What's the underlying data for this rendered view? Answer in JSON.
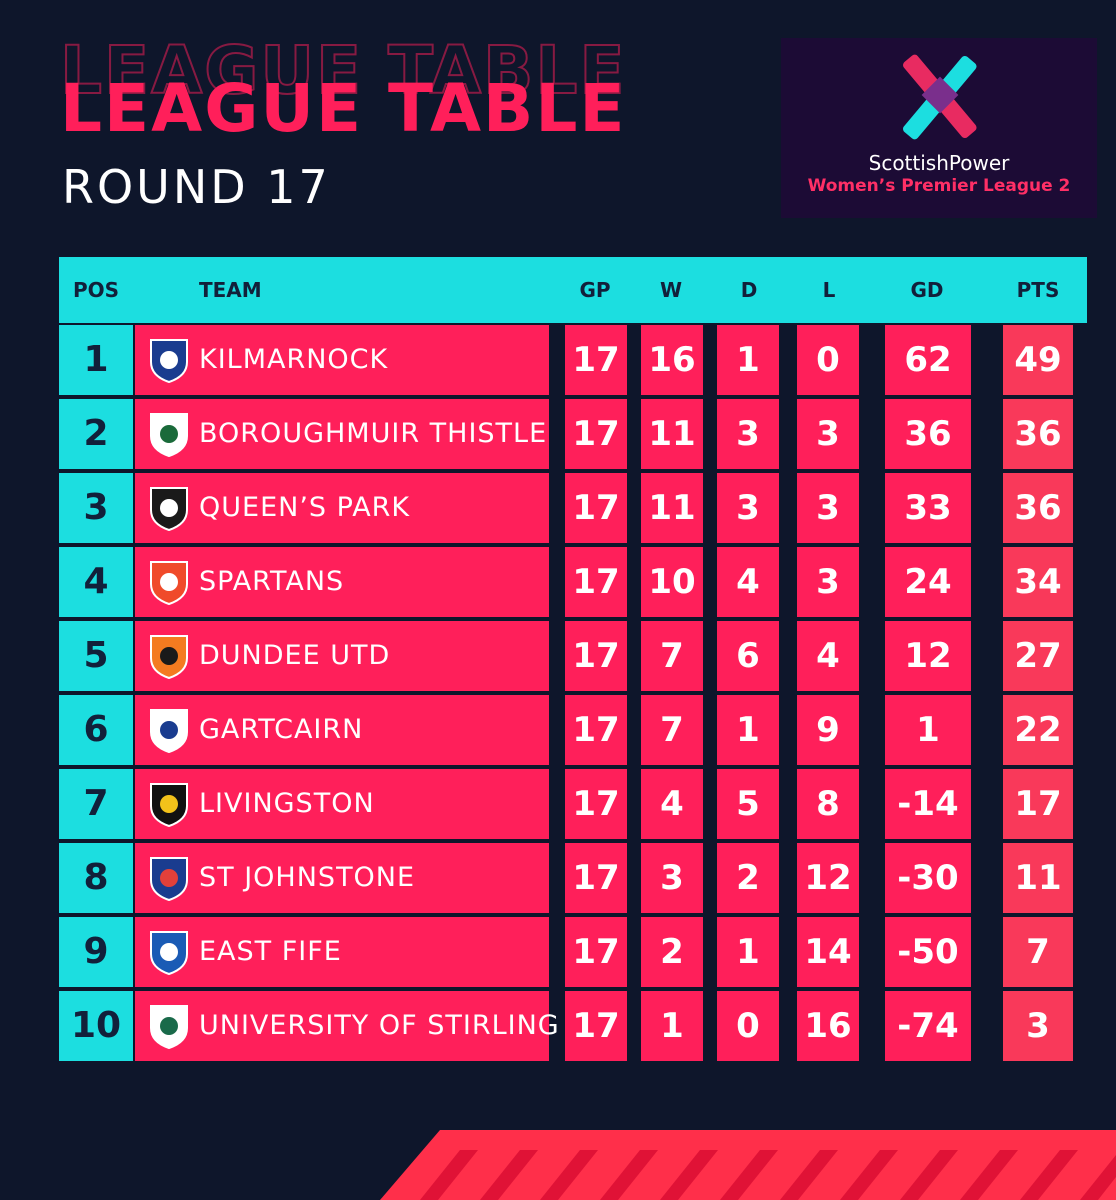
{
  "header": {
    "title": "LEAGUE TABLE",
    "subtitle": "ROUND 17"
  },
  "logo": {
    "brand": "ScottishPower",
    "league": "Women’s Premier League 2",
    "icon": "league-x-logo"
  },
  "colors": {
    "background": "#0e162b",
    "accent_pink": "#ff1f5a",
    "accent_cyan": "#1cdee0",
    "logo_bg": "#1c0b35"
  },
  "table": {
    "columns": [
      "POS",
      "TEAM",
      "GP",
      "W",
      "D",
      "L",
      "GD",
      "PTS"
    ],
    "rows": [
      {
        "pos": "1",
        "team": "KILMARNOCK",
        "gp": "17",
        "w": "16",
        "d": "1",
        "l": "0",
        "gd": "62",
        "pts": "49",
        "crest": "kilmarnock-crest-icon"
      },
      {
        "pos": "2",
        "team": "BOROUGHMUIR THISTLE",
        "gp": "17",
        "w": "11",
        "d": "3",
        "l": "3",
        "gd": "36",
        "pts": "36",
        "crest": "boroughmuir-thistle-crest-icon"
      },
      {
        "pos": "3",
        "team": "QUEEN’S PARK",
        "gp": "17",
        "w": "11",
        "d": "3",
        "l": "3",
        "gd": "33",
        "pts": "36",
        "crest": "queens-park-crest-icon"
      },
      {
        "pos": "4",
        "team": "SPARTANS",
        "gp": "17",
        "w": "10",
        "d": "4",
        "l": "3",
        "gd": "24",
        "pts": "34",
        "crest": "spartans-crest-icon"
      },
      {
        "pos": "5",
        "team": "DUNDEE UTD",
        "gp": "17",
        "w": "7",
        "d": "6",
        "l": "4",
        "gd": "12",
        "pts": "27",
        "crest": "dundee-utd-crest-icon"
      },
      {
        "pos": "6",
        "team": "GARTCAIRN",
        "gp": "17",
        "w": "7",
        "d": "1",
        "l": "9",
        "gd": "1",
        "pts": "22",
        "crest": "gartcairn-crest-icon"
      },
      {
        "pos": "7",
        "team": "LIVINGSTON",
        "gp": "17",
        "w": "4",
        "d": "5",
        "l": "8",
        "gd": "-14",
        "pts": "17",
        "crest": "livingston-crest-icon"
      },
      {
        "pos": "8",
        "team": "ST JOHNSTONE",
        "gp": "17",
        "w": "3",
        "d": "2",
        "l": "12",
        "gd": "-30",
        "pts": "11",
        "crest": "st-johnstone-crest-icon"
      },
      {
        "pos": "9",
        "team": "EAST FIFE",
        "gp": "17",
        "w": "2",
        "d": "1",
        "l": "14",
        "gd": "-50",
        "pts": "7",
        "crest": "east-fife-crest-icon"
      },
      {
        "pos": "10",
        "team": "UNIVERSITY OF STIRLING",
        "gp": "17",
        "w": "1",
        "d": "0",
        "l": "16",
        "gd": "-74",
        "pts": "3",
        "crest": "university-of-stirling-crest-icon"
      }
    ]
  }
}
